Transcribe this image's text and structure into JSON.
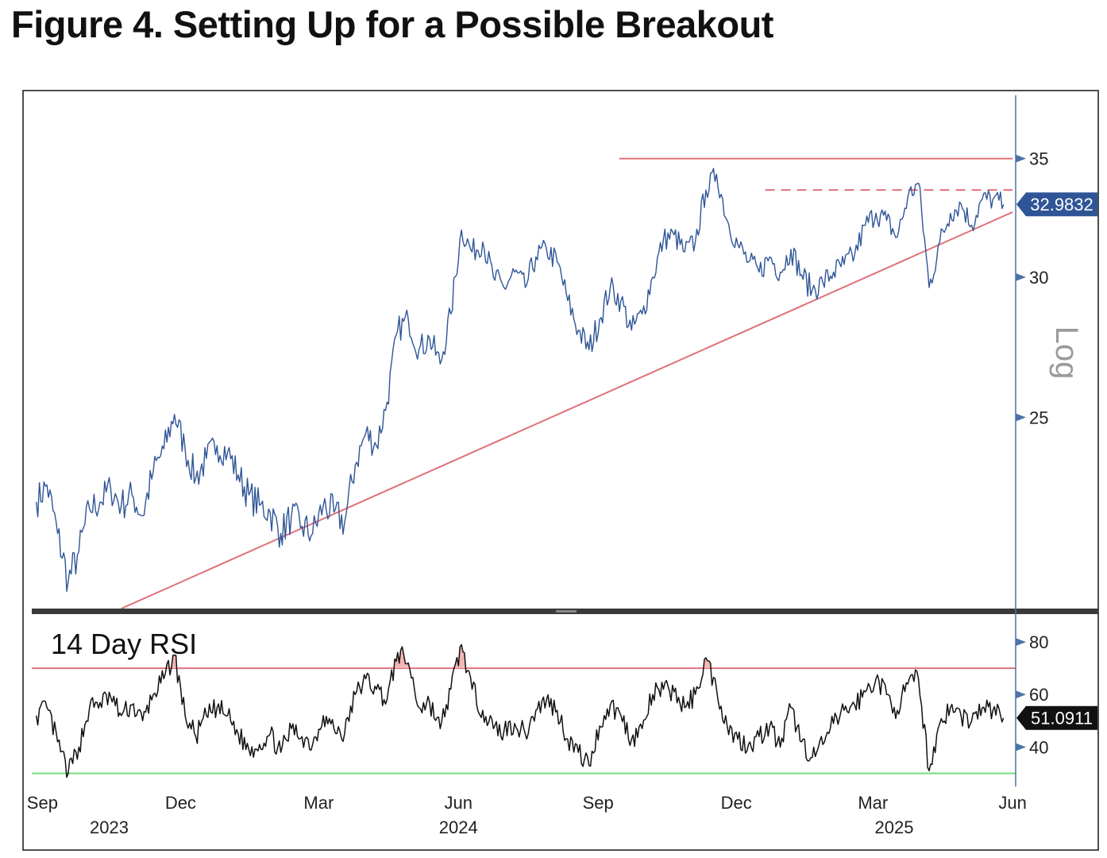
{
  "title": "Figure 4. Setting Up for a Possible Breakout",
  "chart_data": [
    {
      "type": "line",
      "panel": "price",
      "scale": "log",
      "scale_label": "Log",
      "ylim": [
        19.5,
        38
      ],
      "yticks": [
        25,
        30,
        35
      ],
      "last_value_label": "32.9832",
      "x_range": [
        "2023-08-25",
        "2025-06-03"
      ],
      "x_months": [
        {
          "label": "Sep",
          "date": "2023-09-01"
        },
        {
          "label": "Dec",
          "date": "2023-12-01"
        },
        {
          "label": "Mar",
          "date": "2024-03-01"
        },
        {
          "label": "Jun",
          "date": "2024-06-01"
        },
        {
          "label": "Sep",
          "date": "2024-09-01"
        },
        {
          "label": "Dec",
          "date": "2024-12-01"
        },
        {
          "label": "Mar",
          "date": "2025-03-01"
        },
        {
          "label": "Jun",
          "date": "2025-06-01"
        }
      ],
      "x_years": [
        {
          "label": "2023",
          "date": "2023-10-15"
        },
        {
          "label": "2024",
          "date": "2024-06-01"
        },
        {
          "label": "2025",
          "date": "2025-03-15"
        }
      ],
      "series": [
        {
          "color": "#2F5597",
          "points": [
            [
              "2023-08-28",
              22.4
            ],
            [
              "2023-09-04",
              22.9
            ],
            [
              "2023-09-11",
              21.5
            ],
            [
              "2023-09-18",
              20.2
            ],
            [
              "2023-09-25",
              21.0
            ],
            [
              "2023-10-02",
              22.2
            ],
            [
              "2023-10-09",
              22.4
            ],
            [
              "2023-10-16",
              22.8
            ],
            [
              "2023-10-23",
              22.3
            ],
            [
              "2023-10-30",
              22.6
            ],
            [
              "2023-11-06",
              22.0
            ],
            [
              "2023-11-13",
              23.3
            ],
            [
              "2023-11-20",
              24.0
            ],
            [
              "2023-11-27",
              25.1
            ],
            [
              "2023-12-04",
              24.0
            ],
            [
              "2023-12-11",
              23.1
            ],
            [
              "2023-12-18",
              23.7
            ],
            [
              "2023-12-25",
              24.1
            ],
            [
              "2024-01-01",
              23.9
            ],
            [
              "2024-01-08",
              23.2
            ],
            [
              "2024-01-15",
              22.6
            ],
            [
              "2024-01-22",
              22.3
            ],
            [
              "2024-01-29",
              22.1
            ],
            [
              "2024-02-05",
              21.5
            ],
            [
              "2024-02-12",
              22.0
            ],
            [
              "2024-02-19",
              21.7
            ],
            [
              "2024-02-26",
              21.5
            ],
            [
              "2024-03-04",
              22.3
            ],
            [
              "2024-03-11",
              22.1
            ],
            [
              "2024-03-18",
              21.8
            ],
            [
              "2024-03-25",
              23.5
            ],
            [
              "2024-04-01",
              24.5
            ],
            [
              "2024-04-08",
              24.1
            ],
            [
              "2024-04-15",
              25.5
            ],
            [
              "2024-04-22",
              28.0
            ],
            [
              "2024-04-29",
              28.4
            ],
            [
              "2024-05-06",
              27.3
            ],
            [
              "2024-05-13",
              27.7
            ],
            [
              "2024-05-20",
              26.8
            ],
            [
              "2024-05-27",
              28.6
            ],
            [
              "2024-06-03",
              31.9
            ],
            [
              "2024-06-10",
              31.0
            ],
            [
              "2024-06-17",
              31.4
            ],
            [
              "2024-06-24",
              30.0
            ],
            [
              "2024-07-01",
              29.6
            ],
            [
              "2024-07-08",
              30.2
            ],
            [
              "2024-07-15",
              29.6
            ],
            [
              "2024-07-22",
              30.8
            ],
            [
              "2024-07-29",
              31.1
            ],
            [
              "2024-08-05",
              30.6
            ],
            [
              "2024-08-12",
              29.1
            ],
            [
              "2024-08-19",
              28.0
            ],
            [
              "2024-08-26",
              27.3
            ],
            [
              "2024-09-02",
              28.4
            ],
            [
              "2024-09-09",
              29.6
            ],
            [
              "2024-09-16",
              29.1
            ],
            [
              "2024-09-23",
              28.0
            ],
            [
              "2024-09-30",
              28.6
            ],
            [
              "2024-10-07",
              30.0
            ],
            [
              "2024-10-14",
              31.5
            ],
            [
              "2024-10-21",
              31.7
            ],
            [
              "2024-10-28",
              31.0
            ],
            [
              "2024-11-04",
              31.4
            ],
            [
              "2024-11-11",
              33.6
            ],
            [
              "2024-11-18",
              34.3
            ],
            [
              "2024-11-25",
              32.3
            ],
            [
              "2024-12-02",
              31.3
            ],
            [
              "2024-12-09",
              30.6
            ],
            [
              "2024-12-16",
              30.2
            ],
            [
              "2024-12-23",
              30.8
            ],
            [
              "2024-12-30",
              30.2
            ],
            [
              "2025-01-06",
              31.1
            ],
            [
              "2025-01-13",
              30.1
            ],
            [
              "2025-01-20",
              29.5
            ],
            [
              "2025-01-27",
              29.8
            ],
            [
              "2025-02-03",
              30.2
            ],
            [
              "2025-02-10",
              30.5
            ],
            [
              "2025-02-17",
              30.9
            ],
            [
              "2025-02-24",
              32.1
            ],
            [
              "2025-03-03",
              32.6
            ],
            [
              "2025-03-10",
              32.3
            ],
            [
              "2025-03-17",
              31.6
            ],
            [
              "2025-03-24",
              33.3
            ],
            [
              "2025-03-31",
              33.9
            ],
            [
              "2025-04-07",
              29.6
            ],
            [
              "2025-04-14",
              31.4
            ],
            [
              "2025-04-21",
              32.6
            ],
            [
              "2025-04-28",
              33.0
            ],
            [
              "2025-05-05",
              32.1
            ],
            [
              "2025-05-12",
              33.2
            ],
            [
              "2025-05-19",
              33.2
            ],
            [
              "2025-05-26",
              32.98
            ]
          ]
        }
      ],
      "annotations": [
        {
          "kind": "horizontal-resistance",
          "style": "solid",
          "color": "#E0707A",
          "y": 35,
          "from": "2024-09-15",
          "to": "2025-06-01"
        },
        {
          "kind": "horizontal-resistance",
          "style": "dashed",
          "color": "#E0707A",
          "y": 33.6,
          "from": "2024-12-20",
          "to": "2025-06-01"
        },
        {
          "kind": "trendline-support",
          "style": "solid",
          "color": "#E0707A",
          "points": [
            [
              "2023-10-23",
              19.5
            ],
            [
              "2025-06-01",
              32.65
            ]
          ]
        }
      ],
      "grid": false,
      "legend": "none"
    },
    {
      "type": "line",
      "panel": "indicator",
      "label": "14 Day RSI",
      "ylim": [
        25,
        90
      ],
      "yticks": [
        40,
        60,
        80
      ],
      "last_value_label": "51.0911",
      "series": [
        {
          "color": "#111111",
          "points": [
            [
              "2023-08-28",
              52
            ],
            [
              "2023-09-04",
              55
            ],
            [
              "2023-09-11",
              42
            ],
            [
              "2023-09-18",
              30
            ],
            [
              "2023-09-25",
              40
            ],
            [
              "2023-10-02",
              55
            ],
            [
              "2023-10-09",
              57
            ],
            [
              "2023-10-16",
              59
            ],
            [
              "2023-10-23",
              52
            ],
            [
              "2023-10-30",
              56
            ],
            [
              "2023-11-06",
              50
            ],
            [
              "2023-11-13",
              60
            ],
            [
              "2023-11-20",
              66
            ],
            [
              "2023-11-27",
              75
            ],
            [
              "2023-12-04",
              52
            ],
            [
              "2023-12-11",
              44
            ],
            [
              "2023-12-18",
              52
            ],
            [
              "2023-12-25",
              55
            ],
            [
              "2024-01-01",
              52
            ],
            [
              "2024-01-08",
              45
            ],
            [
              "2024-01-15",
              39
            ],
            [
              "2024-01-22",
              41
            ],
            [
              "2024-01-29",
              45
            ],
            [
              "2024-02-05",
              38
            ],
            [
              "2024-02-12",
              47
            ],
            [
              "2024-02-19",
              44
            ],
            [
              "2024-02-26",
              41
            ],
            [
              "2024-03-04",
              52
            ],
            [
              "2024-03-11",
              47
            ],
            [
              "2024-03-18",
              45
            ],
            [
              "2024-03-25",
              60
            ],
            [
              "2024-04-01",
              66
            ],
            [
              "2024-04-08",
              62
            ],
            [
              "2024-04-15",
              58
            ],
            [
              "2024-04-22",
              76
            ],
            [
              "2024-04-29",
              72
            ],
            [
              "2024-05-06",
              55
            ],
            [
              "2024-05-13",
              57
            ],
            [
              "2024-05-20",
              47
            ],
            [
              "2024-05-27",
              62
            ],
            [
              "2024-06-03",
              79
            ],
            [
              "2024-06-10",
              62
            ],
            [
              "2024-06-17",
              54
            ],
            [
              "2024-06-24",
              47
            ],
            [
              "2024-07-01",
              46
            ],
            [
              "2024-07-08",
              49
            ],
            [
              "2024-07-15",
              45
            ],
            [
              "2024-07-22",
              54
            ],
            [
              "2024-07-29",
              58
            ],
            [
              "2024-08-05",
              54
            ],
            [
              "2024-08-12",
              43
            ],
            [
              "2024-08-19",
              38
            ],
            [
              "2024-08-26",
              33
            ],
            [
              "2024-09-02",
              48
            ],
            [
              "2024-09-09",
              56
            ],
            [
              "2024-09-16",
              52
            ],
            [
              "2024-09-23",
              43
            ],
            [
              "2024-09-30",
              47
            ],
            [
              "2024-10-07",
              60
            ],
            [
              "2024-10-14",
              62
            ],
            [
              "2024-10-21",
              61
            ],
            [
              "2024-10-28",
              55
            ],
            [
              "2024-11-04",
              60
            ],
            [
              "2024-11-11",
              74
            ],
            [
              "2024-11-18",
              62
            ],
            [
              "2024-11-25",
              48
            ],
            [
              "2024-12-02",
              43
            ],
            [
              "2024-12-09",
              41
            ],
            [
              "2024-12-16",
              44
            ],
            [
              "2024-12-23",
              48
            ],
            [
              "2024-12-30",
              40
            ],
            [
              "2025-01-06",
              55
            ],
            [
              "2025-01-13",
              42
            ],
            [
              "2025-01-20",
              36
            ],
            [
              "2025-01-27",
              41
            ],
            [
              "2025-02-03",
              49
            ],
            [
              "2025-02-10",
              54
            ],
            [
              "2025-02-17",
              56
            ],
            [
              "2025-02-24",
              61
            ],
            [
              "2025-03-03",
              66
            ],
            [
              "2025-03-10",
              60
            ],
            [
              "2025-03-17",
              54
            ],
            [
              "2025-03-24",
              64
            ],
            [
              "2025-03-31",
              66
            ],
            [
              "2025-04-07",
              31
            ],
            [
              "2025-04-14",
              49
            ],
            [
              "2025-04-21",
              55
            ],
            [
              "2025-04-28",
              52
            ],
            [
              "2025-05-05",
              50
            ],
            [
              "2025-05-12",
              55
            ],
            [
              "2025-05-19",
              54
            ],
            [
              "2025-05-26",
              51.09
            ]
          ]
        }
      ],
      "reference_lines": [
        {
          "name": "overbought",
          "y": 70,
          "color": "#E0707A"
        },
        {
          "name": "oversold",
          "y": 30,
          "color": "#77DD77"
        }
      ],
      "highlight_above": {
        "y": 70,
        "color": "#F4B6B6"
      },
      "grid": false,
      "legend": "none"
    }
  ]
}
